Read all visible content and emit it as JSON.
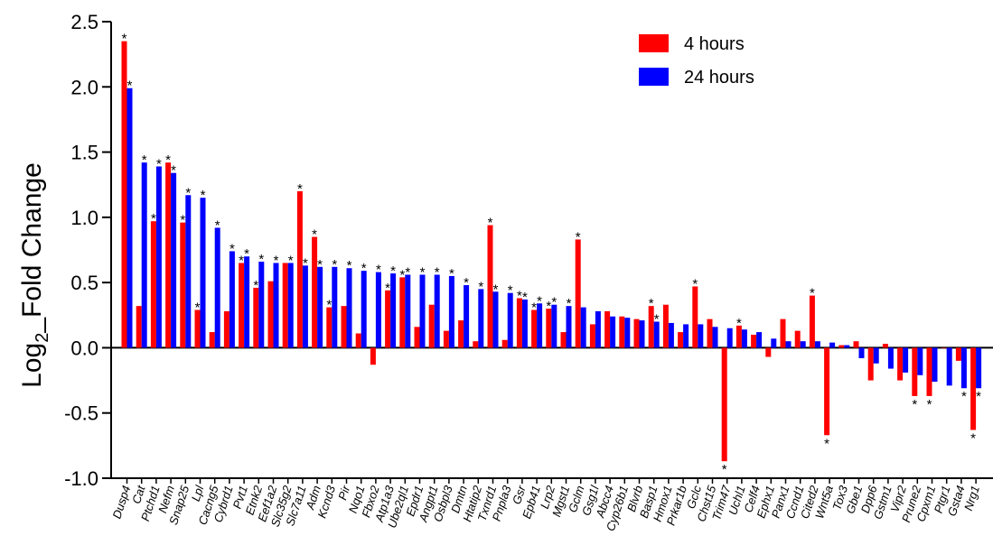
{
  "chart_data": {
    "type": "bar",
    "ylabel_main": "Log",
    "ylabel_sub": "2",
    "ylabel_rest": "_Fold Change",
    "ylim": [
      -1.0,
      2.5
    ],
    "yticks": [
      "-1.0",
      "-0.5",
      "0.0",
      "0.5",
      "1.0",
      "1.5",
      "2.0",
      "2.5"
    ],
    "legend_position": "top-right",
    "colors": {
      "4 hours": "#ff0000",
      "24 hours": "#0000ff"
    },
    "categories": [
      "Dusp4",
      "Cat",
      "Ptchd1",
      "Nefm",
      "Snap25",
      "Lpl",
      "Cacng5",
      "Cybrd1",
      "Pvt1",
      "Etnk2",
      "Eef1a2",
      "Slc35g2",
      "Slc7a11",
      "Adm",
      "Kcnd3",
      "Pir",
      "Nqo1",
      "Fbxo2",
      "Atp1a3",
      "Ube2ql1",
      "Epdr1",
      "Angpt1",
      "Osbpl3",
      "Dmtn",
      "Htatip2",
      "Txnrd1",
      "Pnpla3",
      "Gsr",
      "Epb41",
      "Lrp2",
      "Mgst1",
      "Gclm",
      "Gsg1l",
      "Abcc4",
      "Cyp26b1",
      "Blvrb",
      "Basp1",
      "Hmox1",
      "Prkar1b",
      "Gclc",
      "Chst15",
      "Trim47",
      "Uchl1",
      "Celf4",
      "Ephx1",
      "Panx1",
      "Ccnd1",
      "Cited2",
      "Wnt5a",
      "Tox3",
      "Gbe1",
      "Dpp6",
      "Gstm1",
      "Vipr2",
      "Prune2",
      "Cpxm1",
      "Ptgr1",
      "Gsta4",
      "Nrg1"
    ],
    "series": [
      {
        "name": "4 hours",
        "values": [
          2.35,
          0.32,
          0.97,
          1.42,
          0.96,
          0.29,
          0.12,
          0.28,
          0.65,
          0.46,
          0.51,
          0.65,
          1.2,
          0.85,
          0.31,
          0.32,
          0.11,
          -0.13,
          0.44,
          0.54,
          0.16,
          0.33,
          0.13,
          0.21,
          0.05,
          0.94,
          0.06,
          0.38,
          0.29,
          0.3,
          0.12,
          0.83,
          0.18,
          0.28,
          0.24,
          0.22,
          0.32,
          0.33,
          0.12,
          0.47,
          0.22,
          -0.87,
          0.17,
          0.1,
          -0.07,
          0.22,
          0.13,
          0.4,
          -0.67,
          0.02,
          0.05,
          -0.25,
          0.03,
          -0.25,
          -0.37,
          -0.37,
          0.0,
          -0.1,
          -0.63
        ],
        "significant": [
          true,
          false,
          true,
          true,
          true,
          true,
          false,
          false,
          true,
          true,
          false,
          false,
          true,
          true,
          true,
          false,
          false,
          false,
          true,
          true,
          false,
          false,
          false,
          false,
          false,
          true,
          false,
          true,
          true,
          true,
          false,
          true,
          false,
          false,
          false,
          false,
          true,
          false,
          false,
          true,
          false,
          true,
          true,
          false,
          false,
          false,
          false,
          true,
          true,
          false,
          false,
          false,
          false,
          false,
          true,
          true,
          false,
          false,
          true
        ]
      },
      {
        "name": "24 hours",
        "values": [
          1.99,
          1.42,
          1.39,
          1.34,
          1.17,
          1.15,
          0.92,
          0.74,
          0.7,
          0.66,
          0.65,
          0.65,
          0.63,
          0.62,
          0.62,
          0.61,
          0.59,
          0.58,
          0.57,
          0.56,
          0.56,
          0.56,
          0.55,
          0.48,
          0.45,
          0.43,
          0.42,
          0.37,
          0.34,
          0.33,
          0.32,
          0.31,
          0.28,
          0.24,
          0.23,
          0.21,
          0.2,
          0.19,
          0.18,
          0.18,
          0.16,
          0.15,
          0.14,
          0.12,
          0.07,
          0.05,
          0.05,
          0.05,
          0.04,
          0.02,
          -0.08,
          -0.12,
          -0.16,
          -0.19,
          -0.21,
          -0.26,
          -0.29,
          -0.31,
          -0.31
        ],
        "significant": [
          true,
          true,
          true,
          true,
          true,
          true,
          true,
          true,
          true,
          true,
          true,
          true,
          true,
          true,
          true,
          true,
          true,
          true,
          true,
          true,
          true,
          true,
          true,
          true,
          true,
          true,
          true,
          true,
          true,
          true,
          true,
          false,
          false,
          false,
          false,
          false,
          true,
          false,
          false,
          false,
          false,
          false,
          false,
          false,
          false,
          false,
          false,
          false,
          false,
          false,
          false,
          false,
          false,
          false,
          false,
          false,
          false,
          true,
          true
        ]
      }
    ],
    "significance_marker": "*"
  }
}
